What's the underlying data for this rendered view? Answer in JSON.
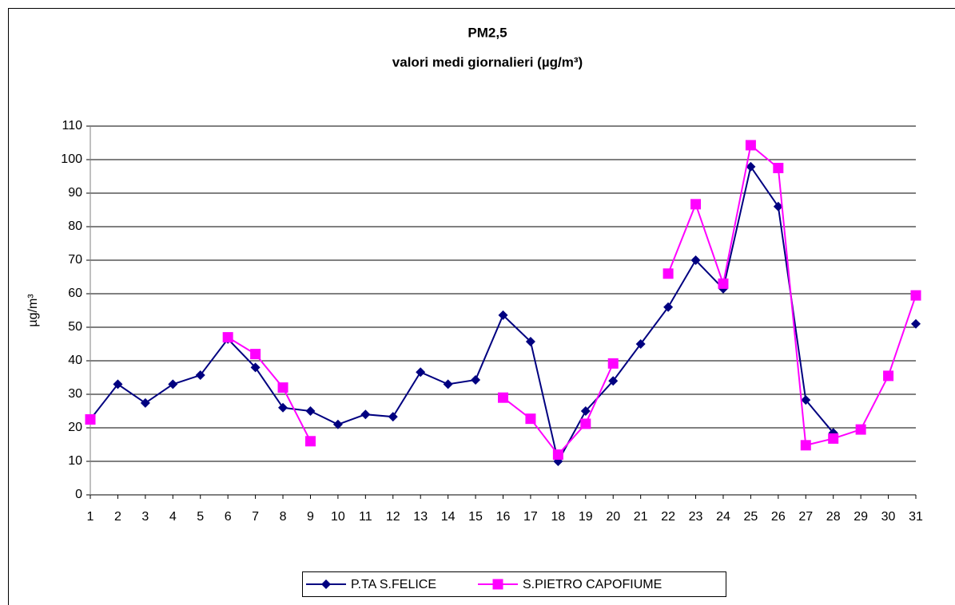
{
  "chart_data": {
    "type": "line",
    "title": "PM2,5",
    "subtitle": "valori medi giornalieri (µg/m³)",
    "y_label": "µg/m³",
    "categories": [
      "1",
      "2",
      "3",
      "4",
      "5",
      "6",
      "7",
      "8",
      "9",
      "10",
      "11",
      "12",
      "13",
      "14",
      "15",
      "16",
      "17",
      "18",
      "19",
      "20",
      "21",
      "22",
      "23",
      "24",
      "25",
      "26",
      "27",
      "28",
      "29",
      "30",
      "31"
    ],
    "series": [
      {
        "name": "P.TA S.FELICE",
        "color": "#000080",
        "marker": "diamond",
        "values": [
          22.5,
          33,
          27.4,
          33,
          35.7,
          46.5,
          38,
          26,
          25,
          21,
          24,
          23.3,
          36.6,
          33,
          34.3,
          53.6,
          45.7,
          10,
          25,
          34,
          45,
          56,
          70,
          61.5,
          97.9,
          86,
          28.3,
          18.5,
          null,
          null,
          51
        ]
      },
      {
        "name": "S.PIETRO CAPOFIUME",
        "color": "#ff00ff",
        "marker": "square",
        "values": [
          22.5,
          null,
          null,
          null,
          null,
          47,
          42,
          32,
          16,
          null,
          null,
          null,
          null,
          null,
          null,
          29,
          22.7,
          12,
          21.2,
          39.2,
          null,
          66,
          86.7,
          63,
          104.3,
          97.5,
          14.8,
          16.8,
          19.5,
          35.5,
          59.5
        ]
      }
    ],
    "ylim": [
      0,
      110
    ],
    "yticks": [
      0,
      10,
      20,
      30,
      40,
      50,
      60,
      70,
      80,
      90,
      100,
      110
    ],
    "grid": true
  }
}
